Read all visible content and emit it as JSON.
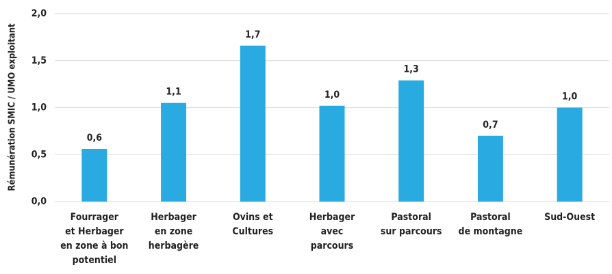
{
  "chart_data": {
    "type": "bar",
    "y_label": "Rémunération SMIC / UMO exploitant",
    "categories": [
      "Fourrager\net Herbager\nen zone à bon\npotentiel",
      "Herbager\nen zone\nherbagère",
      "Ovins et\nCultures",
      "Herbager\navec\nparcours",
      "Pastoral\nsur parcours",
      "Pastoral\nde montagne",
      "Sud-Ouest"
    ],
    "values": [
      0.56,
      1.05,
      1.66,
      1.02,
      1.29,
      0.7,
      1.0
    ],
    "value_labels": [
      "0,6",
      "1,1",
      "1,7",
      "1,0",
      "1,3",
      "0,7",
      "1,0"
    ],
    "color": "#29abe2",
    "ylim": [
      0,
      2
    ],
    "yticks": [
      {
        "value": 0,
        "label": "0,0"
      },
      {
        "value": 0.5,
        "label": "0,5"
      },
      {
        "value": 1,
        "label": "1,0"
      },
      {
        "value": 1.5,
        "label": "1,5"
      },
      {
        "value": 2,
        "label": "2,0"
      }
    ],
    "grid": true
  }
}
